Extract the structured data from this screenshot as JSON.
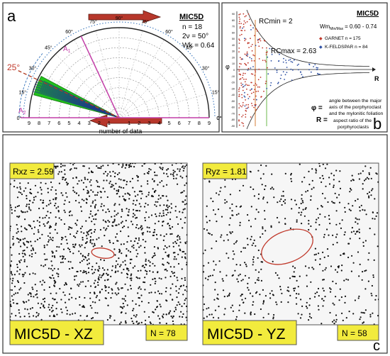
{
  "panel_a": {
    "letter": "a",
    "sample_title": "MIC5D",
    "stats": [
      "n = 18",
      "2ν = 50°",
      "Wk = 0.64"
    ],
    "highlight_angle_label": "25°",
    "angle_ticks_deg": [
      0,
      15,
      30,
      45,
      60,
      75,
      90
    ],
    "ticks_left": [
      "9",
      "8",
      "7",
      "6",
      "5",
      "4",
      "3",
      "2",
      "1"
    ],
    "ticks_right": [
      "1",
      "2",
      "3",
      "4",
      "5",
      "6",
      "7",
      "8",
      "9"
    ],
    "center_label": "0",
    "axis_label": "number of data",
    "A1_label": "A",
    "A1_sub": "1",
    "A2_label": "A",
    "A2_sub": "2",
    "A1_angle_deg": 115,
    "A2_angle_deg": 0,
    "bin_max_count": 9,
    "wedge_from_deg": 152,
    "wedge_to_deg": 165,
    "dashed_angle_deg": 155,
    "colors": {
      "arrow_red": "#b7372b",
      "arrow_dark": "#6b1e14",
      "wedge": "#22c21a",
      "magenta": "#c23ea7",
      "dashed": "#b23a1f",
      "vectors": "#1d3c86"
    }
  },
  "panel_b": {
    "letter": "b",
    "sample_title": "MIC5D",
    "wm_text": "Wm",
    "wm_sub": "Min/Max",
    "wm_range": "= 0.60 - 0.74",
    "rcmin_label": "RCmin = 2",
    "rcmax_label": "RCmax = 2.63",
    "axis_y_label": "φ",
    "axis_x_label": "R",
    "phi_ticks": [
      "90",
      "80",
      "70",
      "60",
      "50",
      "40",
      "30",
      "20",
      "10",
      "0",
      "-10",
      "-20",
      "-30",
      "-40",
      "-50",
      "-60",
      "-70",
      "-80",
      "-90"
    ],
    "legend": [
      {
        "label": "GARNET n = 175",
        "color": "#c0392b"
      },
      {
        "label": "K-FELDSPAR n = 84",
        "color": "#2c4fa3"
      }
    ],
    "phi_def_symbol": "φ =",
    "phi_def_lines": [
      "angle between the major",
      "axis of the porphyroclast",
      "and the mylonitic foliation"
    ],
    "r_def_symbol": "R =",
    "r_def_lines": [
      "aspect ratio of the",
      "porphyroclasts"
    ],
    "colors": {
      "garnet": "#c0392b",
      "kfeldspar": "#2c4fa3",
      "rcmin_line": "#d07020",
      "rcmax_line": "#5db13a"
    }
  },
  "panel_c": {
    "letter": "c",
    "left": {
      "ratio": "Rxz = 2.59",
      "name": "MIC5D - XZ",
      "n": "N = 78",
      "ellipse_ratio": 2.59,
      "point_count": 1400
    },
    "right": {
      "ratio": "Ryz = 1.81",
      "name": "MIC5D - YZ",
      "n": "N = 58",
      "ellipse_ratio": 1.81,
      "point_count": 620
    },
    "colors": {
      "label_bg": "#f2eb3d",
      "ellipse": "#c0392b",
      "dot": "#111111"
    }
  },
  "chart_data": [
    {
      "type": "scatter",
      "title": "MIC5D",
      "xlabel": "R",
      "ylabel": "φ",
      "ylim": [
        -90,
        90
      ],
      "series": [
        {
          "name": "GARNET n = 175",
          "values_phi_range": [
            -90,
            90
          ]
        },
        {
          "name": "K-FELDSPAR n = 84",
          "values_phi_range": [
            -60,
            60
          ]
        }
      ],
      "annotations": [
        "RCmin = 2",
        "RCmax = 2.63"
      ]
    },
    {
      "type": "scatter",
      "title": "MIC5D - XZ",
      "series": [
        {
          "name": "Rxz = 2.59",
          "count": 78
        }
      ]
    },
    {
      "type": "scatter",
      "title": "MIC5D - YZ",
      "series": [
        {
          "name": "Ryz = 1.81",
          "count": 58
        }
      ]
    }
  ]
}
